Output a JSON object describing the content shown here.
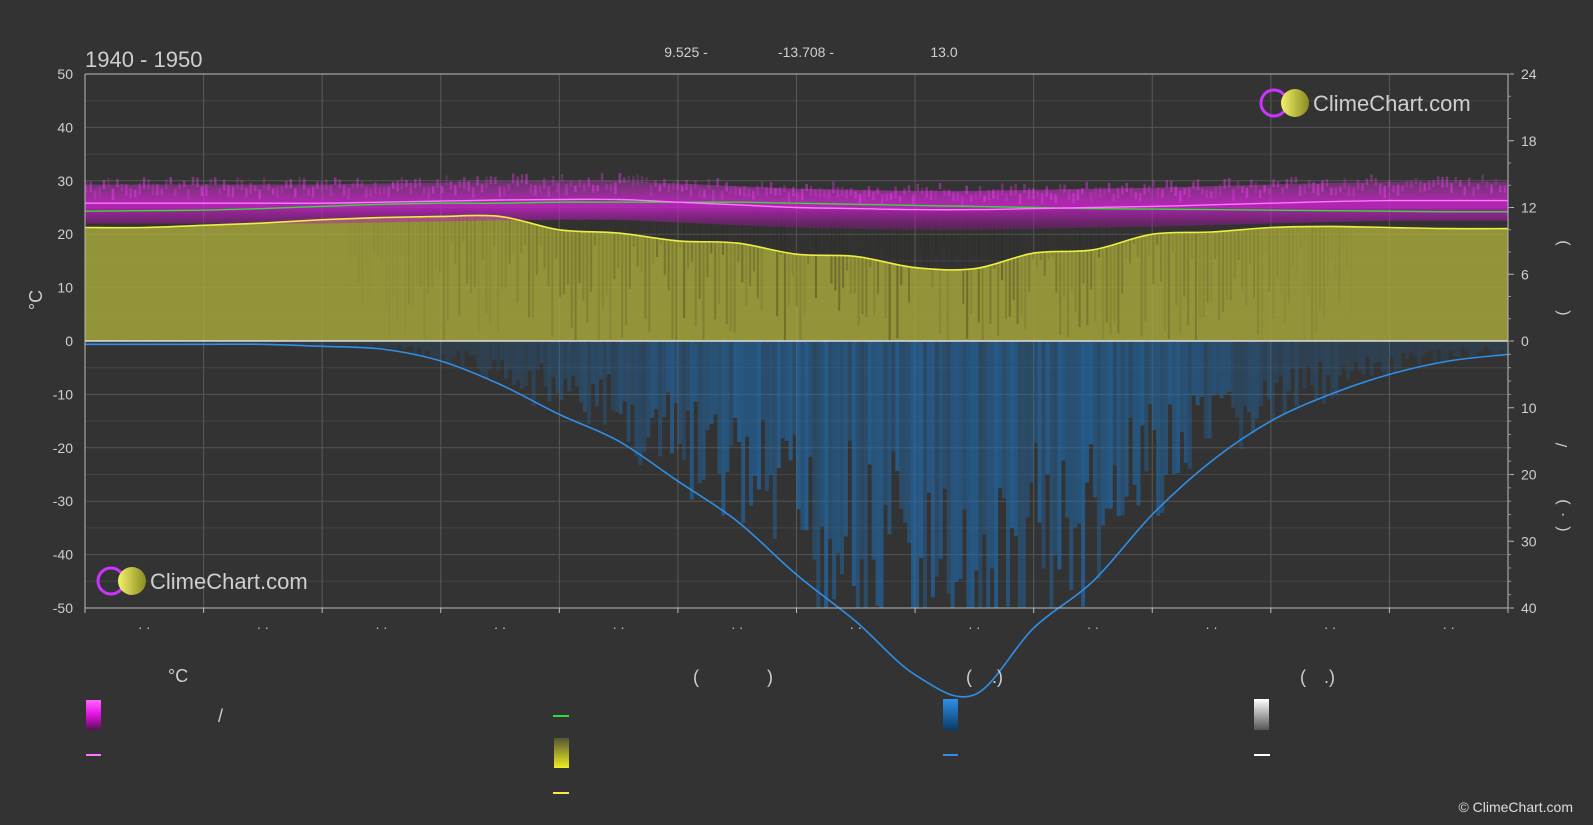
{
  "chart_data": {
    "type": "area",
    "title": "1940 - 1950",
    "header_values": [
      "9.525 -",
      "-13.708 -",
      "13.0"
    ],
    "watermark": "ClimeChart.com",
    "copyright": "© ClimeChart.com",
    "ylabel_left": "°C",
    "ylabel_right_glyphs": [
      ")",
      "(",
      "/",
      ")",
      "(",
      "·"
    ],
    "left_axis": {
      "ticks": [
        "50",
        "40",
        "30",
        "20",
        "10",
        "0",
        "-10",
        "-20",
        "-30",
        "-40",
        "-50"
      ],
      "ylim": [
        -50,
        50
      ]
    },
    "right_axis_upper": {
      "ticks": [
        "24",
        "18",
        "12",
        "6",
        "0"
      ],
      "range": [
        0,
        24
      ]
    },
    "right_axis_lower": {
      "ticks": [
        "10",
        "20",
        "30",
        "40"
      ],
      "range": [
        0,
        40
      ]
    },
    "x_tick_labels": [
      "· ·",
      "· ·",
      "· ·",
      "· ·",
      "· ·",
      "· ·",
      "· ·",
      "· ·",
      "· ·",
      "· ·",
      "· ·",
      "· ·"
    ],
    "x": [
      0,
      0.5,
      1,
      1.5,
      2,
      2.5,
      3,
      3.5,
      4,
      4.5,
      5,
      5.5,
      6,
      6.5,
      7,
      7.5,
      8,
      8.5,
      9,
      9.5,
      10,
      10.5,
      11,
      11.5,
      12
    ],
    "series": [
      {
        "key": "temp_max_mean",
        "color": "#ff77ff",
        "values": [
          25.8,
          25.8,
          25.8,
          25.8,
          25.8,
          26.0,
          26.2,
          26.4,
          26.5,
          26.5,
          26.0,
          25.5,
          25.0,
          24.8,
          24.6,
          24.6,
          24.8,
          25.0,
          25.2,
          25.5,
          25.8,
          26.1,
          26.3,
          26.3,
          26.3
        ]
      },
      {
        "key": "temp_mean",
        "color": "#33dd33",
        "values": [
          24.3,
          24.4,
          24.5,
          24.8,
          25.2,
          25.6,
          25.8,
          25.8,
          26.0,
          26.0,
          26.0,
          26.0,
          25.8,
          25.6,
          25.4,
          25.2,
          25.0,
          24.8,
          24.7,
          24.6,
          24.5,
          24.4,
          24.3,
          24.2,
          24.2
        ]
      },
      {
        "key": "daylight_hours",
        "color": "#eeee44",
        "values": [
          10.2,
          10.2,
          10.4,
          10.6,
          10.9,
          11.1,
          11.2,
          11.2,
          10.0,
          9.7,
          9.0,
          8.8,
          7.8,
          7.6,
          6.6,
          6.5,
          7.9,
          8.2,
          9.6,
          9.8,
          10.2,
          10.3,
          10.2,
          10.1,
          10.1
        ]
      },
      {
        "key": "precipitation_mm",
        "color": "#2f8fe8",
        "values": [
          0.5,
          0.5,
          0.5,
          0.5,
          0.8,
          1.2,
          3.0,
          6.5,
          11.0,
          15.0,
          21.0,
          27.0,
          35.0,
          42.0,
          50.0,
          53.0,
          43.0,
          36.0,
          26.0,
          18.0,
          12.0,
          8.0,
          5.0,
          3.0,
          2.0
        ]
      }
    ],
    "legend": {
      "headers": [
        "°C",
        "(",
        ")",
        "(",
        ".)",
        "(",
        ".)"
      ],
      "separators": [
        "/"
      ],
      "colors": {
        "temp_range": "#e020e0",
        "temp_max_line": "#ff77ff",
        "temp_mean_line": "#33dd33",
        "sunshine": "#eeee44",
        "daylight_line": "#eeee44",
        "rain": "#2f8fe8",
        "rain_line": "#2f8fe8",
        "snow": "#ffffff",
        "snow_line": "#ffffff"
      }
    }
  }
}
